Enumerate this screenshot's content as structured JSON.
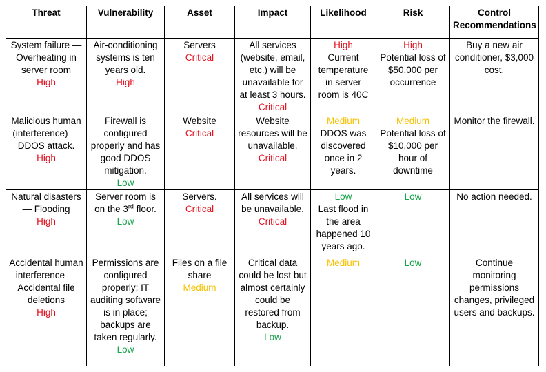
{
  "headers": [
    "Threat",
    "Vulnerability",
    "Asset",
    "Impact",
    "Likelihood",
    "Risk",
    "Control Recommendations"
  ],
  "colors": {
    "high": "#e2101f",
    "critical": "#e2101f",
    "medium": "#f5c100",
    "low": "#16a34a"
  },
  "rows": [
    [
      {
        "text": "System failure — Overheating in server room",
        "level": "High",
        "level_first": false
      },
      {
        "text": "Air-conditioning systems is ten years old.",
        "level": "High",
        "level_first": false
      },
      {
        "text": "Servers",
        "level": "Critical",
        "level_first": false
      },
      {
        "text": "All services (website, email, etc.) will be unavailable for at least 3 hours.",
        "level": "Critical",
        "level_first": false
      },
      {
        "text": "Current temperature in server room is 40C",
        "level": "High",
        "level_first": true
      },
      {
        "text": "Potential loss of $50,000 per occurrence",
        "level": "High",
        "level_first": true
      },
      {
        "text": "Buy a new air conditioner, $3,000 cost."
      }
    ],
    [
      {
        "text": "Malicious human (interference) — DDOS attack.",
        "level": "High",
        "level_first": false
      },
      {
        "text": "Firewall is configured properly and has good DDOS mitigation.",
        "level": "Low",
        "level_first": false
      },
      {
        "text": "Website",
        "level": "Critical",
        "level_first": false
      },
      {
        "text": "Website resources will be unavailable.",
        "level": "Critical",
        "level_first": false
      },
      {
        "text": "DDOS was discovered once in 2 years.",
        "level": "Medium",
        "level_first": true
      },
      {
        "text": "Potential loss of $10,000 per hour of downtime",
        "level": "Medium",
        "level_first": true
      },
      {
        "text": "Monitor the firewall."
      }
    ],
    [
      {
        "text": "Natural disasters — Flooding",
        "level": "High",
        "level_first": false
      },
      {
        "text": "Server room is on the 3",
        "sup": "rd",
        "after": " floor.",
        "level": "Low",
        "level_first": false
      },
      {
        "text": "Servers.",
        "level": "Critical",
        "level_first": false
      },
      {
        "text": "All services will be unavailable.",
        "level": "Critical",
        "level_first": false
      },
      {
        "text": "Last flood in the area happened 10 years ago.",
        "level": "Low",
        "level_first": true
      },
      {
        "text": "",
        "level": "Low",
        "level_first": true
      },
      {
        "text": "No action needed."
      }
    ],
    [
      {
        "text": "Accidental human interference — Accidental file deletions",
        "level": "High",
        "level_first": false
      },
      {
        "text": "Permissions are configured properly; IT auditing software is in place; backups are taken regularly.",
        "level": "Low",
        "level_first": false
      },
      {
        "text": "Files on a file share",
        "level": "Medium",
        "level_first": false
      },
      {
        "text": "Critical data could be lost but almost certainly could be restored from backup.",
        "level": "Low",
        "level_first": false
      },
      {
        "text": "",
        "level": "Medium",
        "level_first": true
      },
      {
        "text": "",
        "level": "Low",
        "level_first": true
      },
      {
        "text": "Continue monitoring permissions changes, privileged users and backups."
      }
    ]
  ]
}
